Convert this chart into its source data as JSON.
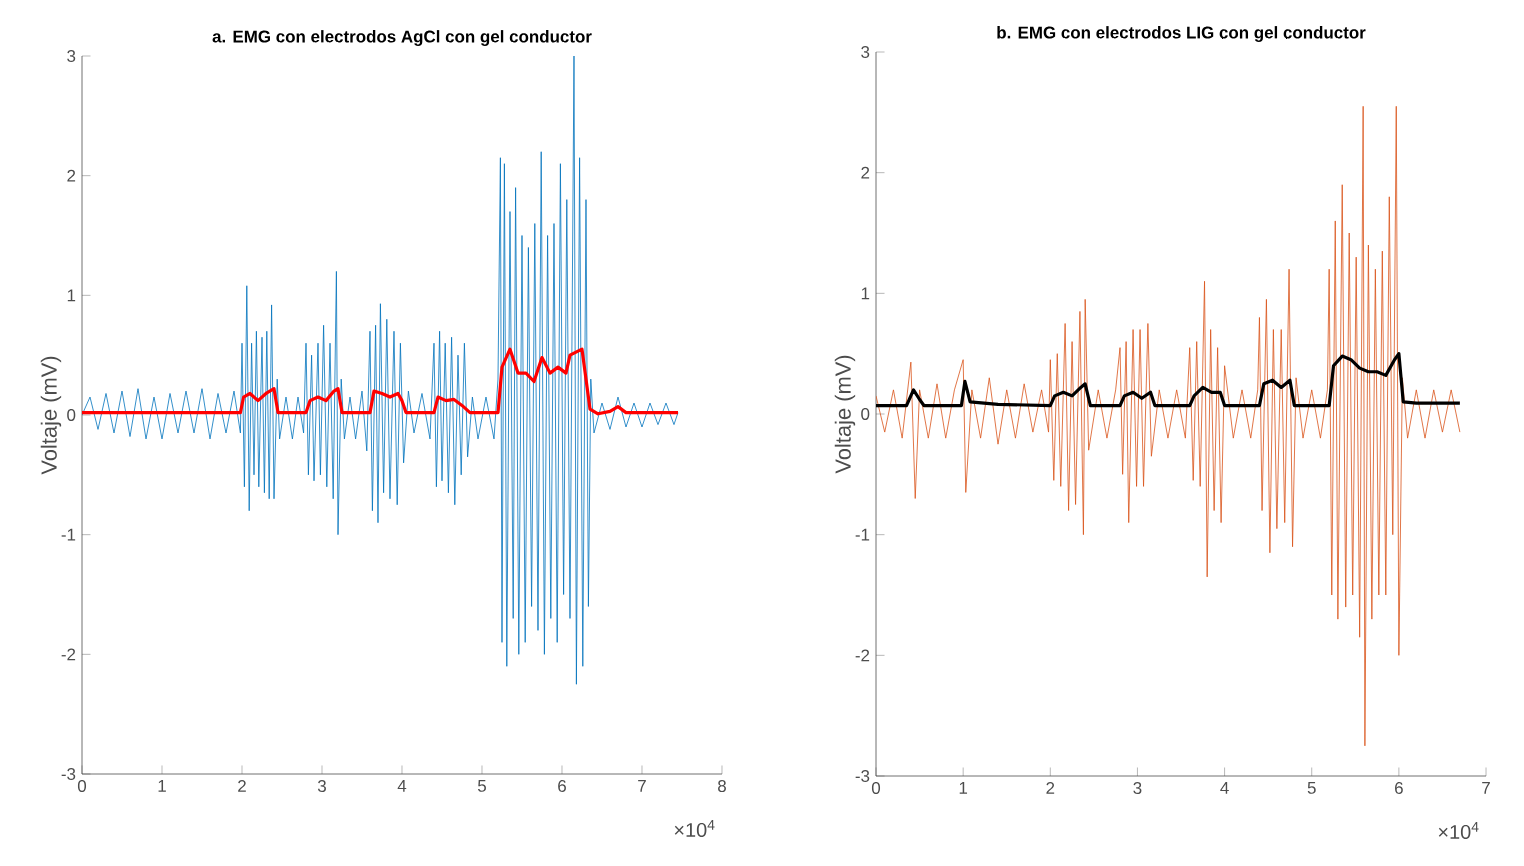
{
  "chart_data": [
    {
      "type": "line",
      "title": "a. EMG con electrodos AgCl con gel conductor",
      "ylabel": "Voltaje (mV)",
      "xlim": [
        0,
        8
      ],
      "ylim": [
        -3,
        3
      ],
      "xticks": [
        0,
        1,
        2,
        3,
        4,
        5,
        6,
        7,
        8
      ],
      "yticks": [
        -3,
        -2,
        -1,
        0,
        1,
        2,
        3
      ],
      "annotations": [
        "×10$^{4}$"
      ],
      "series": [
        {
          "color": "#0072bd",
          "x": [
            0,
            0.1,
            0.2,
            0.3,
            0.4,
            0.5,
            0.6,
            0.7,
            0.8,
            0.9,
            1.0,
            1.1,
            1.2,
            1.3,
            1.4,
            1.5,
            1.6,
            1.7,
            1.8,
            1.9,
            1.98,
            2.0,
            2.03,
            2.06,
            2.09,
            2.12,
            2.15,
            2.18,
            2.21,
            2.25,
            2.28,
            2.31,
            2.34,
            2.37,
            2.4,
            2.44,
            2.47,
            2.55,
            2.63,
            2.7,
            2.77,
            2.8,
            2.83,
            2.87,
            2.9,
            2.95,
            2.98,
            3.02,
            3.06,
            3.1,
            3.14,
            3.18,
            3.2,
            3.24,
            3.28,
            3.35,
            3.42,
            3.5,
            3.56,
            3.6,
            3.63,
            3.67,
            3.7,
            3.73,
            3.77,
            3.81,
            3.85,
            3.9,
            3.94,
            3.98,
            4.02,
            4.08,
            4.15,
            4.25,
            4.35,
            4.4,
            4.43,
            4.47,
            4.5,
            4.54,
            4.58,
            4.62,
            4.66,
            4.7,
            4.74,
            4.78,
            4.82,
            4.88,
            4.95,
            5.05,
            5.15,
            5.2,
            5.23,
            5.25,
            5.28,
            5.31,
            5.35,
            5.39,
            5.42,
            5.46,
            5.5,
            5.54,
            5.58,
            5.62,
            5.66,
            5.7,
            5.74,
            5.78,
            5.82,
            5.86,
            5.9,
            5.94,
            5.98,
            6.02,
            6.06,
            6.1,
            6.15,
            6.18,
            6.22,
            6.26,
            6.3,
            6.33,
            6.36,
            6.4,
            6.5,
            6.6,
            6.7,
            6.8,
            6.9,
            7.0,
            7.1,
            7.2,
            7.3,
            7.4,
            7.45
          ],
          "values": [
            0,
            0.15,
            -0.12,
            0.18,
            -0.15,
            0.2,
            -0.18,
            0.22,
            -0.2,
            0.15,
            -0.2,
            0.18,
            -0.15,
            0.2,
            -0.15,
            0.22,
            -0.2,
            0.18,
            -0.15,
            0.2,
            -0.15,
            0.6,
            -0.6,
            1.08,
            -0.8,
            0.6,
            -0.5,
            0.7,
            -0.6,
            0.65,
            -0.65,
            0.7,
            -0.7,
            0.92,
            -0.7,
            0.3,
            -0.2,
            0.15,
            -0.2,
            0.15,
            -0.15,
            0.6,
            -0.5,
            0.5,
            -0.55,
            0.6,
            -0.5,
            0.75,
            -0.6,
            0.6,
            -0.7,
            1.2,
            -1.0,
            0.3,
            -0.2,
            0.15,
            -0.2,
            0.2,
            -0.3,
            0.7,
            -0.8,
            0.75,
            -0.9,
            0.93,
            -0.65,
            0.8,
            -0.7,
            0.7,
            -0.75,
            0.6,
            -0.4,
            0.2,
            -0.15,
            0.18,
            -0.2,
            0.6,
            -0.6,
            0.7,
            -0.55,
            0.6,
            -0.65,
            0.65,
            -0.75,
            0.5,
            -0.5,
            0.6,
            -0.35,
            0.15,
            -0.2,
            0.15,
            -0.2,
            0.3,
            2.15,
            -1.9,
            2.1,
            -2.1,
            1.7,
            -1.7,
            1.9,
            -2.0,
            1.5,
            -1.9,
            1.4,
            -1.6,
            1.6,
            -1.8,
            2.2,
            -2.0,
            1.5,
            -1.7,
            1.6,
            -1.9,
            2.1,
            -1.5,
            1.8,
            -1.7,
            3.0,
            -2.25,
            2.15,
            -2.1,
            1.8,
            -1.6,
            0.3,
            -0.15,
            0.1,
            -0.12,
            0.15,
            -0.1,
            0.1,
            -0.1,
            0.1,
            -0.08,
            0.1,
            -0.08,
            0.02
          ]
        },
        {
          "color": "#ff0000",
          "x": [
            0,
            1.98,
            2.02,
            2.1,
            2.2,
            2.3,
            2.4,
            2.45,
            2.8,
            2.85,
            2.95,
            3.05,
            3.15,
            3.2,
            3.25,
            3.6,
            3.65,
            3.75,
            3.85,
            3.95,
            4.0,
            4.05,
            4.4,
            4.45,
            4.55,
            4.65,
            4.75,
            4.85,
            5.2,
            5.25,
            5.35,
            5.45,
            5.55,
            5.65,
            5.75,
            5.85,
            5.95,
            6.05,
            6.1,
            6.25,
            6.35,
            6.45,
            6.6,
            6.7,
            6.8,
            7.45
          ],
          "values": [
            0.02,
            0.02,
            0.15,
            0.18,
            0.12,
            0.18,
            0.22,
            0.02,
            0.02,
            0.12,
            0.15,
            0.12,
            0.2,
            0.22,
            0.02,
            0.02,
            0.2,
            0.18,
            0.15,
            0.18,
            0.12,
            0.02,
            0.02,
            0.15,
            0.12,
            0.13,
            0.08,
            0.02,
            0.02,
            0.4,
            0.55,
            0.35,
            0.35,
            0.28,
            0.48,
            0.35,
            0.4,
            0.35,
            0.5,
            0.55,
            0.05,
            0.01,
            0.03,
            0.07,
            0.02,
            0.02
          ]
        }
      ]
    },
    {
      "type": "line",
      "title": "b. EMG con electrodos LIG con gel conductor",
      "ylabel": "Voltaje (mV)",
      "xlim": [
        0,
        7
      ],
      "ylim": [
        -3,
        3
      ],
      "xticks": [
        0,
        1,
        2,
        3,
        4,
        5,
        6,
        7
      ],
      "yticks": [
        -3,
        -2,
        -1,
        0,
        1,
        2,
        3
      ],
      "annotations": [
        "×10$^{4}$"
      ],
      "series": [
        {
          "color": "#d95319",
          "x": [
            0,
            0.1,
            0.2,
            0.3,
            0.4,
            0.45,
            0.5,
            0.6,
            0.7,
            0.8,
            0.9,
            1.0,
            1.03,
            1.1,
            1.2,
            1.3,
            1.4,
            1.5,
            1.6,
            1.7,
            1.8,
            1.9,
            1.98,
            2.0,
            2.04,
            2.08,
            2.12,
            2.17,
            2.21,
            2.25,
            2.29,
            2.34,
            2.38,
            2.4,
            2.44,
            2.55,
            2.65,
            2.75,
            2.8,
            2.83,
            2.87,
            2.9,
            2.95,
            2.99,
            3.03,
            3.07,
            3.12,
            3.16,
            3.25,
            3.35,
            3.45,
            3.55,
            3.6,
            3.64,
            3.68,
            3.72,
            3.77,
            3.8,
            3.84,
            3.88,
            3.92,
            3.96,
            4.0,
            4.1,
            4.2,
            4.3,
            4.38,
            4.4,
            4.43,
            4.48,
            4.52,
            4.56,
            4.6,
            4.65,
            4.69,
            4.74,
            4.78,
            4.82,
            4.9,
            5.0,
            5.1,
            5.18,
            5.2,
            5.23,
            5.27,
            5.3,
            5.35,
            5.39,
            5.43,
            5.47,
            5.51,
            5.55,
            5.59,
            5.61,
            5.65,
            5.69,
            5.73,
            5.77,
            5.81,
            5.85,
            5.89,
            5.93,
            5.97,
            6.0,
            6.04,
            6.1,
            6.2,
            6.3,
            6.4,
            6.5,
            6.6,
            6.7
          ],
          "values": [
            0.15,
            -0.15,
            0.2,
            -0.2,
            0.43,
            -0.7,
            0.2,
            -0.2,
            0.25,
            -0.2,
            0.2,
            0.45,
            -0.65,
            0.2,
            -0.2,
            0.3,
            -0.25,
            0.2,
            -0.2,
            0.25,
            -0.15,
            0.2,
            -0.15,
            0.45,
            -0.55,
            0.5,
            -0.6,
            0.75,
            -0.8,
            0.6,
            -0.75,
            0.85,
            -1.0,
            0.95,
            -0.3,
            0.2,
            -0.2,
            0.2,
            0.55,
            -0.5,
            0.6,
            -0.9,
            0.7,
            -0.6,
            0.7,
            -0.6,
            0.75,
            -0.35,
            0.2,
            -0.2,
            0.2,
            -0.2,
            0.55,
            -0.55,
            0.6,
            -0.6,
            1.1,
            -1.35,
            0.7,
            -0.8,
            0.55,
            -0.9,
            0.4,
            -0.2,
            0.2,
            -0.2,
            0.2,
            0.8,
            -0.8,
            0.95,
            -1.15,
            0.7,
            -0.95,
            0.7,
            -0.9,
            1.2,
            -1.1,
            0.3,
            -0.2,
            0.2,
            -0.2,
            0.2,
            1.2,
            -1.5,
            1.6,
            -1.7,
            1.9,
            -1.6,
            1.5,
            -1.5,
            1.3,
            -1.85,
            2.55,
            -2.75,
            1.4,
            -1.7,
            1.2,
            -1.5,
            1.35,
            -1.5,
            1.8,
            -1.0,
            2.55,
            -2.0,
            0.3,
            -0.2,
            0.2,
            -0.2,
            0.2,
            -0.15,
            0.2,
            -0.15
          ]
        },
        {
          "color": "#000000",
          "x": [
            0,
            0.35,
            0.43,
            0.5,
            0.55,
            0.98,
            1.02,
            1.08,
            1.4,
            2.0,
            2.05,
            2.15,
            2.25,
            2.35,
            2.4,
            2.46,
            2.8,
            2.85,
            2.95,
            3.05,
            3.15,
            3.2,
            3.6,
            3.65,
            3.75,
            3.85,
            3.95,
            4.0,
            4.4,
            4.45,
            4.55,
            4.65,
            4.75,
            4.8,
            5.2,
            5.25,
            5.35,
            5.45,
            5.55,
            5.65,
            5.75,
            5.85,
            5.95,
            6.0,
            6.05,
            6.2,
            6.7
          ],
          "values": [
            0.07,
            0.07,
            0.2,
            0.12,
            0.07,
            0.07,
            0.27,
            0.1,
            0.08,
            0.07,
            0.15,
            0.18,
            0.15,
            0.22,
            0.25,
            0.07,
            0.07,
            0.15,
            0.18,
            0.13,
            0.18,
            0.07,
            0.07,
            0.15,
            0.22,
            0.18,
            0.18,
            0.07,
            0.07,
            0.25,
            0.28,
            0.22,
            0.28,
            0.07,
            0.07,
            0.4,
            0.48,
            0.45,
            0.38,
            0.35,
            0.35,
            0.32,
            0.45,
            0.5,
            0.1,
            0.09,
            0.09
          ]
        }
      ]
    }
  ]
}
